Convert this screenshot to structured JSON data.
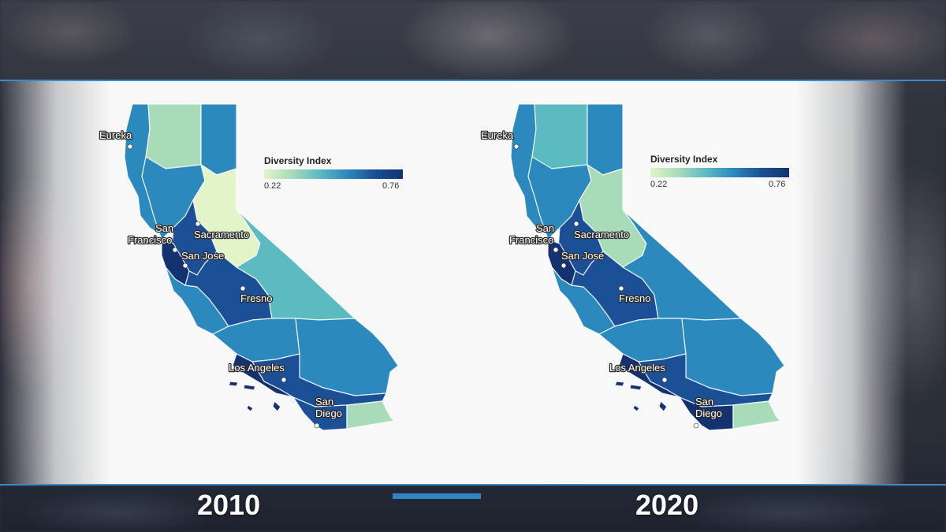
{
  "legend": {
    "title": "Diversity Index",
    "min": "0.22",
    "max": "0.76"
  },
  "cities": {
    "eureka": "Eureka",
    "san_francisco_1": "San",
    "san_francisco_2": "Francisco",
    "sacramento": "Sacramento",
    "san_jose": "San Jose",
    "fresno": "Fresno",
    "los_angeles": "Los Angeles",
    "san_diego_1": "San",
    "san_diego_2": "Diego"
  },
  "years": {
    "left": "2010",
    "right": "2020"
  },
  "colors": {
    "rule": "#3d8ac8",
    "accent_bar": "#2f84c6",
    "scale": [
      "#e3f4c8",
      "#a8dcb9",
      "#5cbac1",
      "#2c89bd",
      "#1b4f96",
      "#14326f"
    ]
  },
  "maps": [
    {
      "year": "2010",
      "levels": {
        "north_coast": 3,
        "north_center": 1,
        "northeast": 3,
        "sierra": 0,
        "valley_north": 3,
        "bay": 5,
        "bay_inner": 4,
        "central_coast": 3,
        "san_joaquin": 4,
        "east_sierra": 2,
        "south_central": 3,
        "desert": 3,
        "socal": 4,
        "la": 5,
        "san_diego": 4,
        "imperial": 1
      }
    },
    {
      "year": "2020",
      "levels": {
        "north_coast": 3,
        "north_center": 2,
        "northeast": 3,
        "sierra": 1,
        "valley_north": 3,
        "bay": 5,
        "bay_inner": 4,
        "central_coast": 3,
        "san_joaquin": 4,
        "east_sierra": 3,
        "south_central": 3,
        "desert": 3,
        "socal": 4,
        "la": 5,
        "san_diego": 5,
        "imperial": 1
      }
    }
  ]
}
